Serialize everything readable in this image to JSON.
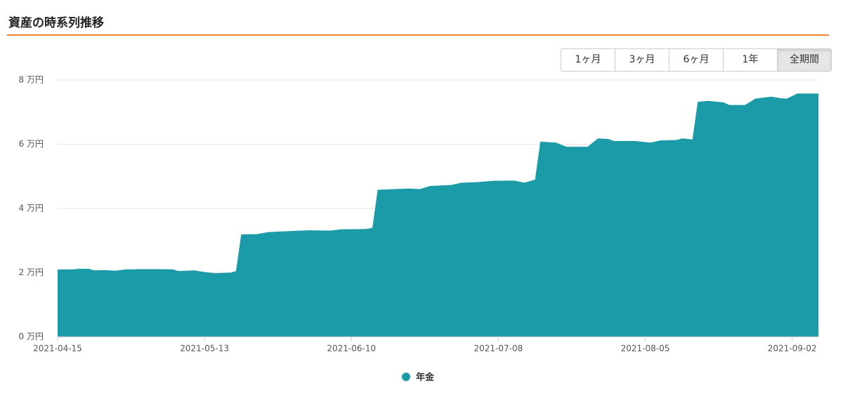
{
  "header": {
    "title": "資産の時系列推移"
  },
  "range_buttons": [
    "1ヶ月",
    "3ヶ月",
    "6ヶ月",
    "1年",
    "全期間"
  ],
  "chart_data": {
    "type": "area",
    "x": [
      "2021-04-15",
      "2021-04-18",
      "2021-04-19",
      "2021-04-21",
      "2021-04-22",
      "2021-04-24",
      "2021-04-26",
      "2021-04-28",
      "2021-05-01",
      "2021-05-05",
      "2021-05-07",
      "2021-05-08",
      "2021-05-11",
      "2021-05-13",
      "2021-05-15",
      "2021-05-18",
      "2021-05-19",
      "2021-05-20",
      "2021-05-23",
      "2021-05-25",
      "2021-05-27",
      "2021-05-30",
      "2021-06-02",
      "2021-06-06",
      "2021-06-08",
      "2021-06-13",
      "2021-06-14",
      "2021-06-15",
      "2021-06-18",
      "2021-06-21",
      "2021-06-23",
      "2021-06-25",
      "2021-06-29",
      "2021-07-01",
      "2021-07-04",
      "2021-07-07",
      "2021-07-11",
      "2021-07-13",
      "2021-07-15",
      "2021-07-16",
      "2021-07-19",
      "2021-07-21",
      "2021-07-25",
      "2021-07-27",
      "2021-07-29",
      "2021-07-30",
      "2021-08-03",
      "2021-08-06",
      "2021-08-08",
      "2021-08-11",
      "2021-08-12",
      "2021-08-14",
      "2021-08-15",
      "2021-08-17",
      "2021-08-20",
      "2021-08-21",
      "2021-08-24",
      "2021-08-26",
      "2021-08-29",
      "2021-08-31",
      "2021-09-01",
      "2021-09-02",
      "2021-09-03",
      "2021-09-07"
    ],
    "series": [
      {
        "name": "年金",
        "color": "#1b9aa8",
        "values": [
          2.1,
          2.1,
          2.12,
          2.12,
          2.07,
          2.08,
          2.06,
          2.1,
          2.11,
          2.11,
          2.1,
          2.05,
          2.07,
          2.02,
          1.98,
          2.0,
          2.05,
          3.19,
          3.2,
          3.26,
          3.28,
          3.3,
          3.32,
          3.31,
          3.35,
          3.36,
          3.4,
          4.58,
          4.6,
          4.62,
          4.6,
          4.7,
          4.73,
          4.8,
          4.82,
          4.86,
          4.87,
          4.8,
          4.9,
          6.08,
          6.05,
          5.92,
          5.92,
          6.18,
          6.16,
          6.1,
          6.1,
          6.05,
          6.12,
          6.13,
          6.18,
          6.15,
          7.32,
          7.35,
          7.3,
          7.22,
          7.22,
          7.42,
          7.48,
          7.43,
          7.42,
          7.5,
          7.58,
          7.58
        ]
      }
    ],
    "xlim": [
      "2021-04-15",
      "2021-09-07"
    ],
    "xticks": [
      "2021-04-15",
      "2021-05-13",
      "2021-06-10",
      "2021-07-08",
      "2021-08-05",
      "2021-09-02"
    ],
    "ylim": [
      0,
      8
    ],
    "yticks": [
      {
        "value": 0,
        "label": "0 万円"
      },
      {
        "value": 2,
        "label": "2 万円"
      },
      {
        "value": 4,
        "label": "4 万円"
      },
      {
        "value": 6,
        "label": "6 万円"
      },
      {
        "value": 8,
        "label": "8 万円"
      }
    ],
    "grid": true
  }
}
